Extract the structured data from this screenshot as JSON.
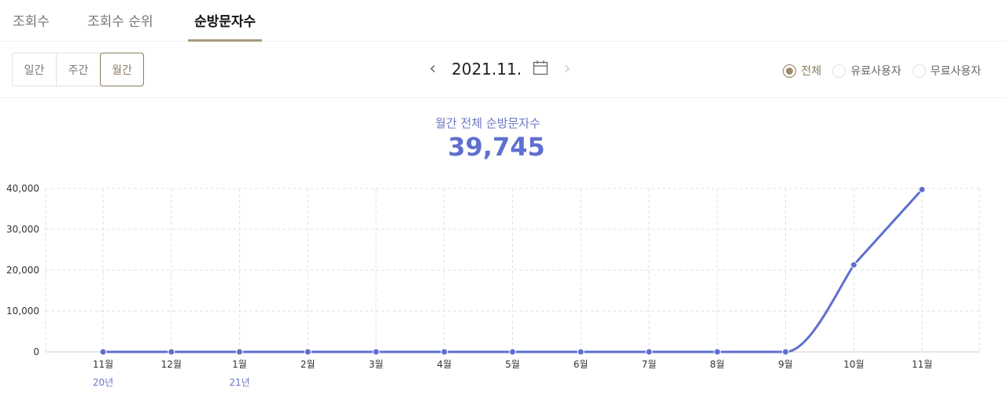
{
  "tabs": [
    {
      "label": "조회수"
    },
    {
      "label": "조회수 순위"
    },
    {
      "label": "순방문자수",
      "active": true
    }
  ],
  "period": {
    "options": [
      "일간",
      "주간",
      "월간"
    ],
    "selected": "월간"
  },
  "date_nav": {
    "date": "2021.11.",
    "prev_icon": "chevron-left-icon",
    "next_icon": "chevron-right-icon",
    "calendar_icon": "calendar-icon"
  },
  "filter": {
    "options": [
      "전체",
      "유료사용자",
      "무료사용자"
    ],
    "selected": "전체"
  },
  "summary": {
    "label": "월간 전체 순방문자수",
    "value": "39,745"
  },
  "colors": {
    "accent": "#a89a7c",
    "series": "#5f6fd0"
  },
  "chart_data": {
    "type": "line",
    "categories": [
      "11월",
      "12월",
      "1월",
      "2월",
      "3월",
      "4월",
      "5월",
      "6월",
      "7월",
      "8월",
      "9월",
      "10월",
      "11월"
    ],
    "year_labels": {
      "0": "20년",
      "2": "21년"
    },
    "values": [
      0,
      0,
      0,
      0,
      0,
      0,
      0,
      0,
      0,
      0,
      0,
      21300,
      39745
    ],
    "yticks": [
      "0",
      "10,000",
      "20,000",
      "30,000",
      "40,000"
    ],
    "ylim": [
      0,
      40000
    ],
    "grid": true
  }
}
